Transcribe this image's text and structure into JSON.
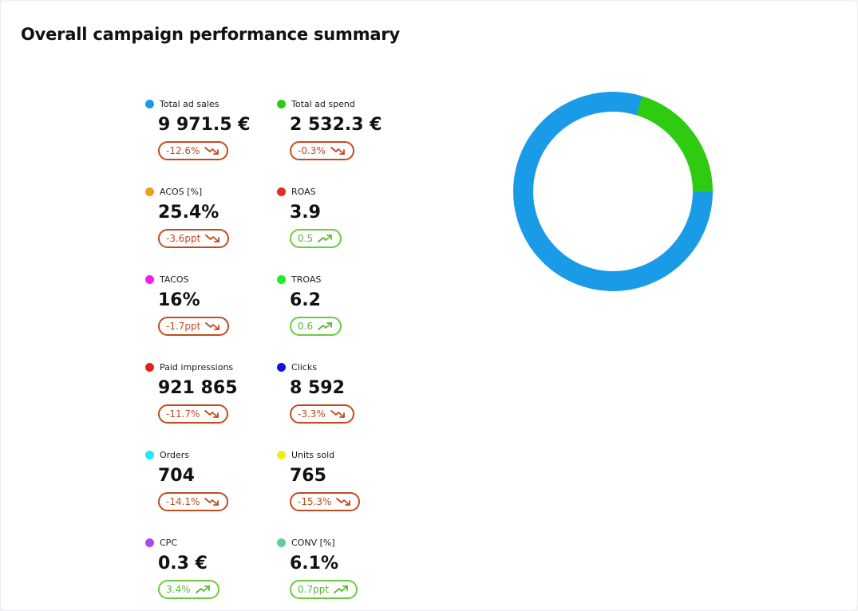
{
  "page": {
    "title": "Overall campaign performance summary"
  },
  "metrics": [
    {
      "label": "Total ad sales",
      "value": "9 971.5 €",
      "change": "-12.6%",
      "direction": "down",
      "color": "#1a9be8"
    },
    {
      "label": "Total ad spend",
      "value": "2 532.3 €",
      "change": "-0.3%",
      "direction": "down",
      "color": "#2ecb12"
    },
    {
      "label": "ACOS [%]",
      "value": "25.4%",
      "change": "-3.6ppt",
      "direction": "down",
      "color": "#f39b1c"
    },
    {
      "label": "ROAS",
      "value": "3.9",
      "change": "0.5",
      "direction": "up",
      "color": "#e02f1c"
    },
    {
      "label": "TACOS",
      "value": "16%",
      "change": "-1.7ppt",
      "direction": "down",
      "color": "#f21bf2"
    },
    {
      "label": "TROAS",
      "value": "6.2",
      "change": "0.6",
      "direction": "up",
      "color": "#22ee22"
    },
    {
      "label": "Paid impressions",
      "value": "921 865",
      "change": "-11.7%",
      "direction": "down",
      "color": "#e8211b"
    },
    {
      "label": "Clicks",
      "value": "8 592",
      "change": "-3.3%",
      "direction": "down",
      "color": "#1212e0"
    },
    {
      "label": "Orders",
      "value": "704",
      "change": "-14.1%",
      "direction": "down",
      "color": "#1fe9f2"
    },
    {
      "label": "Units sold",
      "value": "765",
      "change": "-15.3%",
      "direction": "down",
      "color": "#f2ec12"
    },
    {
      "label": "CPC",
      "value": "0.3 €",
      "change": "3.4%",
      "direction": "up",
      "color": "#a949e8"
    },
    {
      "label": "CONV [%]",
      "value": "6.1%",
      "change": "0.7ppt",
      "direction": "up",
      "color": "#5fcf98"
    }
  ],
  "donut": {
    "segments": [
      {
        "name": "Total ad sales",
        "value": 9971.5,
        "color": "#1a9be8"
      },
      {
        "name": "Total ad spend",
        "value": 2532.3,
        "color": "#2ecb12"
      }
    ]
  }
}
